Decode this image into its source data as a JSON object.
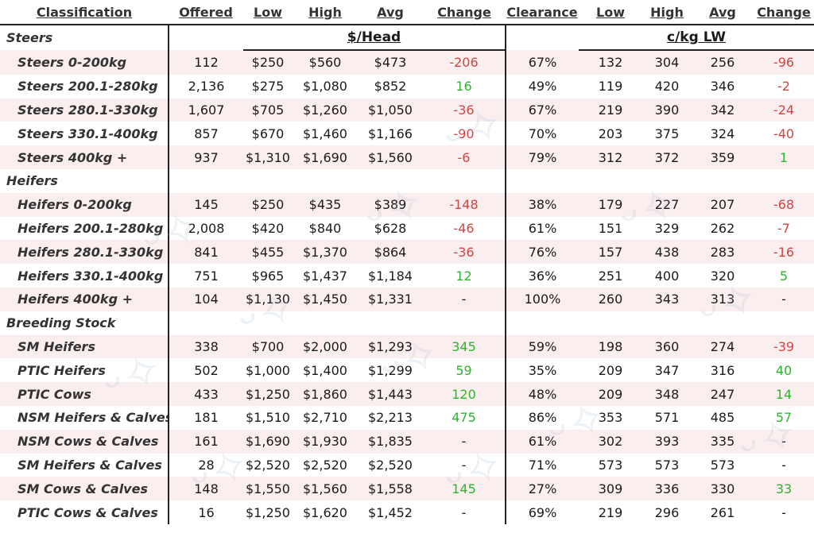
{
  "headers": [
    "Classification",
    "Offered",
    "Low",
    "High",
    "Avg",
    "Change",
    "Clearance",
    "Low",
    "High",
    "Avg",
    "Change"
  ],
  "units": {
    "head": "$/Head",
    "kg": "c/kg LW"
  },
  "sections": [
    {
      "name": "Steers",
      "rows": [
        [
          "Steers 0-200kg",
          "112",
          "$250",
          "$560",
          "$473",
          "-206",
          "67%",
          "132",
          "304",
          "256",
          "-96"
        ],
        [
          "Steers 200.1-280kg",
          "2,136",
          "$275",
          "$1,080",
          "$852",
          "16",
          "49%",
          "119",
          "420",
          "346",
          "-2"
        ],
        [
          "Steers 280.1-330kg",
          "1,607",
          "$705",
          "$1,260",
          "$1,050",
          "-36",
          "67%",
          "219",
          "390",
          "342",
          "-24"
        ],
        [
          "Steers 330.1-400kg",
          "857",
          "$670",
          "$1,460",
          "$1,166",
          "-90",
          "70%",
          "203",
          "375",
          "324",
          "-40"
        ],
        [
          "Steers 400kg +",
          "937",
          "$1,310",
          "$1,690",
          "$1,560",
          "-6",
          "79%",
          "312",
          "372",
          "359",
          "1"
        ]
      ]
    },
    {
      "name": "Heifers",
      "rows": [
        [
          "Heifers 0-200kg",
          "145",
          "$250",
          "$435",
          "$389",
          "-148",
          "38%",
          "179",
          "227",
          "207",
          "-68"
        ],
        [
          "Heifers 200.1-280kg",
          "2,008",
          "$420",
          "$840",
          "$628",
          "-46",
          "61%",
          "151",
          "329",
          "262",
          "-7"
        ],
        [
          "Heifers 280.1-330kg",
          "841",
          "$455",
          "$1,370",
          "$864",
          "-36",
          "76%",
          "157",
          "438",
          "283",
          "-16"
        ],
        [
          "Heifers 330.1-400kg",
          "751",
          "$965",
          "$1,437",
          "$1,184",
          "12",
          "36%",
          "251",
          "400",
          "320",
          "5"
        ],
        [
          "Heifers 400kg +",
          "104",
          "$1,130",
          "$1,450",
          "$1,331",
          "-",
          "100%",
          "260",
          "343",
          "313",
          "-"
        ]
      ]
    },
    {
      "name": "Breeding Stock",
      "rows": [
        [
          "SM Heifers",
          "338",
          "$700",
          "$2,000",
          "$1,293",
          "345",
          "59%",
          "198",
          "360",
          "274",
          "-39"
        ],
        [
          "PTIC Heifers",
          "502",
          "$1,000",
          "$1,400",
          "$1,299",
          "59",
          "35%",
          "209",
          "347",
          "316",
          "40"
        ],
        [
          "PTIC Cows",
          "433",
          "$1,250",
          "$1,860",
          "$1,443",
          "120",
          "48%",
          "209",
          "348",
          "247",
          "14"
        ],
        [
          "NSM Heifers & Calves",
          "181",
          "$1,510",
          "$2,710",
          "$2,213",
          "475",
          "86%",
          "353",
          "571",
          "485",
          "57"
        ],
        [
          "NSM Cows & Calves",
          "161",
          "$1,690",
          "$1,930",
          "$1,835",
          "-",
          "61%",
          "302",
          "393",
          "335",
          "-"
        ],
        [
          "SM Heifers & Calves",
          "28",
          "$2,520",
          "$2,520",
          "$2,520",
          "-",
          "71%",
          "573",
          "573",
          "573",
          "-"
        ],
        [
          "SM Cows & Calves",
          "148",
          "$1,550",
          "$1,560",
          "$1,558",
          "145",
          "27%",
          "309",
          "336",
          "330",
          "33"
        ],
        [
          "PTIC Cows & Calves",
          "16",
          "$1,250",
          "$1,620",
          "$1,452",
          "-",
          "69%",
          "219",
          "296",
          "261",
          "-"
        ]
      ]
    }
  ],
  "colors": {
    "negative": "#d04444",
    "positive": "#2bb52b",
    "stripe": "#fbeeee"
  }
}
